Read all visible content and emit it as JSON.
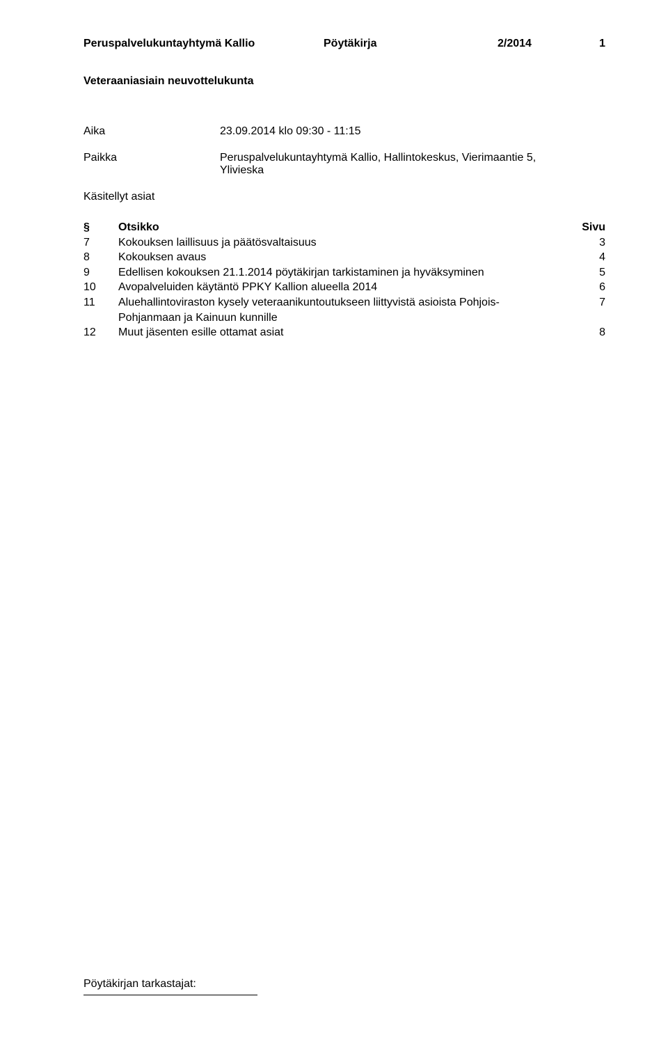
{
  "header": {
    "org": "Peruspalvelukuntayhtymä Kallio",
    "doc_type": "Pöytäkirja",
    "number": "2/2014",
    "page": "1"
  },
  "subtitle": "Veteraaniasiain neuvottelukunta",
  "meta": {
    "aika_label": "Aika",
    "aika_value": "23.09.2014 klo 09:30 - 11:15",
    "paikka_label": "Paikka",
    "paikka_value_line1": "Peruspalvelukuntayhtymä Kallio, Hallintokeskus, Vierimaantie 5,",
    "paikka_value_line2": "Ylivieska"
  },
  "section_heading": "Käsitellyt asiat",
  "toc_header": {
    "sym": "§",
    "title": "Otsikko",
    "page": "Sivu"
  },
  "toc": [
    {
      "sym": "7",
      "title": "Kokouksen laillisuus ja päätösvaltaisuus",
      "page": "3"
    },
    {
      "sym": "8",
      "title": "Kokouksen avaus",
      "page": "4"
    },
    {
      "sym": "9",
      "title": "Edellisen kokouksen 21.1.2014 pöytäkirjan tarkistaminen ja hyväksyminen",
      "page": "5"
    },
    {
      "sym": "10",
      "title": "Avopalveluiden käytäntö PPKY Kallion alueella 2014",
      "page": "6"
    },
    {
      "sym": "11",
      "title": "Aluehallintoviraston kysely veteraanikuntoutukseen liittyvistä asioista Pohjois-Pohjanmaan ja Kainuun kunnille",
      "page": "7"
    },
    {
      "sym": "12",
      "title": "Muut jäsenten esille ottamat asiat",
      "page": "8"
    }
  ],
  "footer": "Pöytäkirjan tarkastajat:"
}
